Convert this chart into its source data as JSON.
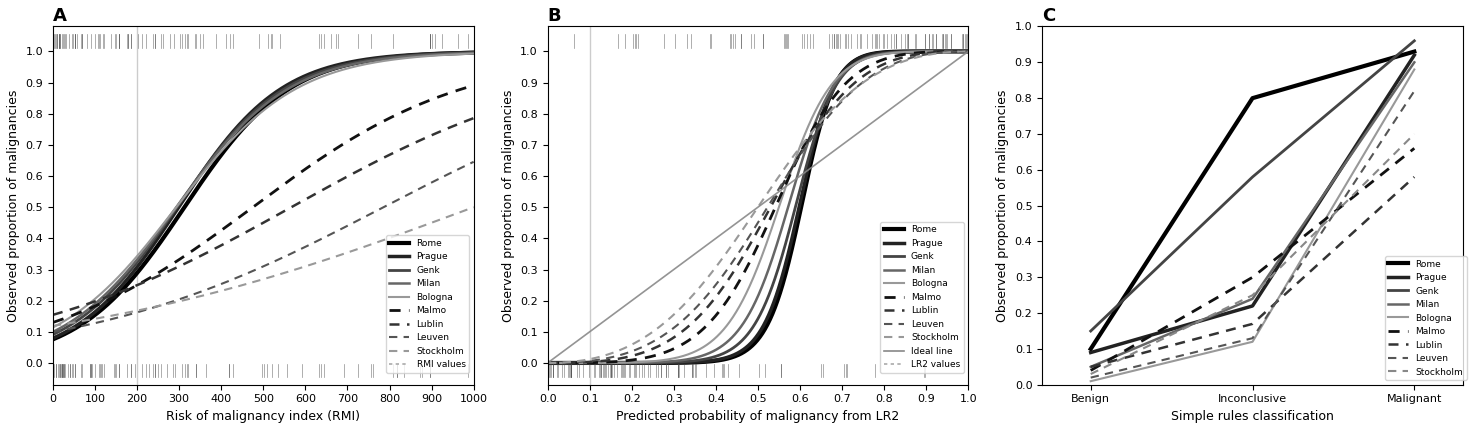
{
  "panel_A": {
    "title": "A",
    "xlabel": "Risk of malignancy index (RMI)",
    "ylabel": "Observed proportion of malignancies",
    "xlim": [
      0,
      1000
    ],
    "ylim": [
      -0.07,
      1.08
    ],
    "vline": 200,
    "yticks": [
      0.0,
      0.1,
      0.2,
      0.3,
      0.4,
      0.5,
      0.6,
      0.7,
      0.8,
      0.9,
      1.0
    ],
    "xticks": [
      0,
      100,
      200,
      300,
      400,
      500,
      600,
      700,
      800,
      900,
      1000
    ],
    "xtick_labels": [
      "0",
      "100",
      "200",
      "300",
      "400",
      "500",
      "600",
      "700",
      "800",
      "900",
      "1000"
    ],
    "rmi_solid_params": [
      {
        "k": 0.008,
        "c": -2.5,
        "color": "#000000",
        "lw": 3.0
      },
      {
        "k": 0.0082,
        "c": -2.45,
        "color": "#222222",
        "lw": 2.5
      },
      {
        "k": 0.0078,
        "c": -2.3,
        "color": "#444444",
        "lw": 2.0
      },
      {
        "k": 0.0075,
        "c": -2.2,
        "color": "#666666",
        "lw": 1.8
      },
      {
        "k": 0.007,
        "c": -2.05,
        "color": "#999999",
        "lw": 1.5
      }
    ],
    "rmi_dotted_params": [
      {
        "k": 0.004,
        "c": -1.9,
        "color": "#111111",
        "lw": 2.0
      },
      {
        "k": 0.003,
        "c": -1.7,
        "color": "#333333",
        "lw": 1.8
      },
      {
        "k": 0.0028,
        "c": -2.2,
        "color": "#555555",
        "lw": 1.5
      },
      {
        "k": 0.002,
        "c": -2.0,
        "color": "#999999",
        "lw": 1.5
      }
    ]
  },
  "panel_B": {
    "title": "B",
    "xlabel": "Predicted probability of malignancy from LR2",
    "ylabel": "Observed proportion of malignancies",
    "xlim": [
      0.0,
      1.0
    ],
    "ylim": [
      -0.07,
      1.08
    ],
    "vline": 0.1,
    "yticks": [
      0.0,
      0.1,
      0.2,
      0.3,
      0.4,
      0.5,
      0.6,
      0.7,
      0.8,
      0.9,
      1.0
    ],
    "xticks": [
      0.0,
      0.1,
      0.2,
      0.3,
      0.4,
      0.5,
      0.6,
      0.7,
      0.8,
      0.9,
      1.0
    ],
    "xtick_labels": [
      "0.0",
      "0.1",
      "0.2",
      "0.3",
      "0.4",
      "0.5",
      "0.6",
      "0.7",
      "0.8",
      "0.9",
      "1.0"
    ],
    "lr2_solid_params": [
      {
        "k": 6.0,
        "c": -2.5,
        "color": "#000000",
        "lw": 3.0
      },
      {
        "k": 5.8,
        "c": -2.3,
        "color": "#222222",
        "lw": 2.5
      },
      {
        "k": 5.0,
        "c": -1.8,
        "color": "#444444",
        "lw": 2.0
      },
      {
        "k": 4.5,
        "c": -1.3,
        "color": "#666666",
        "lw": 1.8
      },
      {
        "k": 4.0,
        "c": -0.8,
        "color": "#999999",
        "lw": 1.5
      }
    ],
    "lr2_dotted_params": [
      {
        "k": 3.0,
        "c": -0.5,
        "color": "#111111",
        "lw": 2.0
      },
      {
        "k": 2.5,
        "c": -0.3,
        "color": "#333333",
        "lw": 1.8
      },
      {
        "k": 2.2,
        "c": -0.2,
        "color": "#555555",
        "lw": 1.5
      },
      {
        "k": 2.0,
        "c": 0.0,
        "color": "#999999",
        "lw": 1.5
      }
    ]
  },
  "panel_C": {
    "title": "C",
    "xlabel": "Simple rules classification",
    "ylabel": "Observed proportion of malignancies",
    "xlim": [
      -0.3,
      2.3
    ],
    "ylim": [
      0.0,
      1.0
    ],
    "yticks": [
      0.0,
      0.1,
      0.2,
      0.3,
      0.4,
      0.5,
      0.6,
      0.7,
      0.8,
      0.9,
      1.0
    ],
    "xtick_positions": [
      0,
      1,
      2
    ],
    "xtick_labels": [
      "Benign",
      "Inconclusive",
      "Malignant"
    ],
    "solid_series": [
      {
        "label": "Rome",
        "color": "#000000",
        "lw": 3.0,
        "values": [
          0.1,
          0.8,
          0.93
        ]
      },
      {
        "label": "Prague",
        "color": "#222222",
        "lw": 2.5,
        "values": [
          0.09,
          0.22,
          0.92
        ]
      },
      {
        "label": "Genk",
        "color": "#444444",
        "lw": 2.0,
        "values": [
          0.15,
          0.58,
          0.96
        ]
      },
      {
        "label": "Milan",
        "color": "#666666",
        "lw": 1.8,
        "values": [
          0.05,
          0.24,
          0.9
        ]
      },
      {
        "label": "Bologna",
        "color": "#999999",
        "lw": 1.5,
        "values": [
          0.01,
          0.12,
          0.88
        ]
      }
    ],
    "dotted_series": [
      {
        "label": "Malmo",
        "color": "#111111",
        "lw": 2.0,
        "values": [
          0.04,
          0.3,
          0.66
        ]
      },
      {
        "label": "Lublin",
        "color": "#333333",
        "lw": 1.8,
        "values": [
          0.05,
          0.17,
          0.58
        ]
      },
      {
        "label": "Leuven",
        "color": "#555555",
        "lw": 1.5,
        "values": [
          0.02,
          0.13,
          0.82
        ]
      },
      {
        "label": "Stockholm",
        "color": "#888888",
        "lw": 1.5,
        "values": [
          0.03,
          0.25,
          0.7
        ]
      }
    ]
  },
  "legend_AB": {
    "solid_labels": [
      "Rome",
      "Prague",
      "Genk",
      "Milan",
      "Bologna"
    ],
    "solid_colors": [
      "#000000",
      "#222222",
      "#444444",
      "#666666",
      "#999999"
    ],
    "solid_lws": [
      3.0,
      2.5,
      2.0,
      1.8,
      1.5
    ],
    "dotted_labels": [
      "Malmo",
      "Lublin",
      "Leuven",
      "Stockholm"
    ],
    "dotted_colors": [
      "#111111",
      "#333333",
      "#555555",
      "#999999"
    ],
    "dotted_lws": [
      2.0,
      1.8,
      1.5,
      1.5
    ]
  }
}
